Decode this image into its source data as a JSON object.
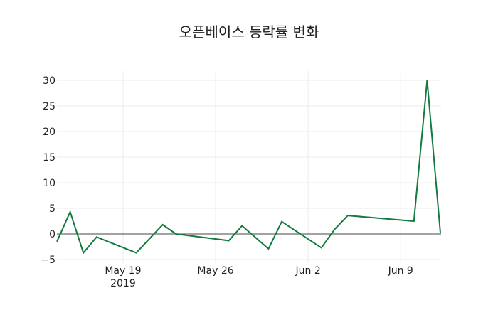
{
  "chart_data": {
    "type": "line",
    "title": "오픈베이스 등락률 변화",
    "xlabel": "",
    "ylabel": "",
    "x": [
      "2019-05-14",
      "2019-05-15",
      "2019-05-16",
      "2019-05-17",
      "2019-05-20",
      "2019-05-22",
      "2019-05-23",
      "2019-05-27",
      "2019-05-28",
      "2019-05-30",
      "2019-05-31",
      "2019-06-03",
      "2019-06-04",
      "2019-06-05",
      "2019-06-10",
      "2019-06-11",
      "2019-06-12"
    ],
    "series": [
      {
        "name": "등락률",
        "color": "#137a3f",
        "values": [
          -1.5,
          4.3,
          -3.7,
          -0.6,
          -3.7,
          1.8,
          0.0,
          -1.3,
          1.6,
          -2.9,
          2.4,
          -2.7,
          0.9,
          3.6,
          2.5,
          30.0,
          0.2
        ]
      }
    ],
    "ylim": [
      -5,
      32
    ],
    "yticks": [
      -5,
      0,
      5,
      10,
      15,
      20,
      25,
      30
    ],
    "ytick_labels": [
      "−5",
      "0",
      "5",
      "10",
      "15",
      "20",
      "25",
      "30"
    ],
    "xticks": [
      {
        "date": "2019-05-19",
        "label": "May 19",
        "sublabel": "2019"
      },
      {
        "date": "2019-05-26",
        "label": "May 26",
        "sublabel": ""
      },
      {
        "date": "2019-06-02",
        "label": "Jun 2",
        "sublabel": ""
      },
      {
        "date": "2019-06-09",
        "label": "Jun 9",
        "sublabel": ""
      }
    ],
    "grid": true,
    "zeroline": true,
    "legend": "none"
  }
}
